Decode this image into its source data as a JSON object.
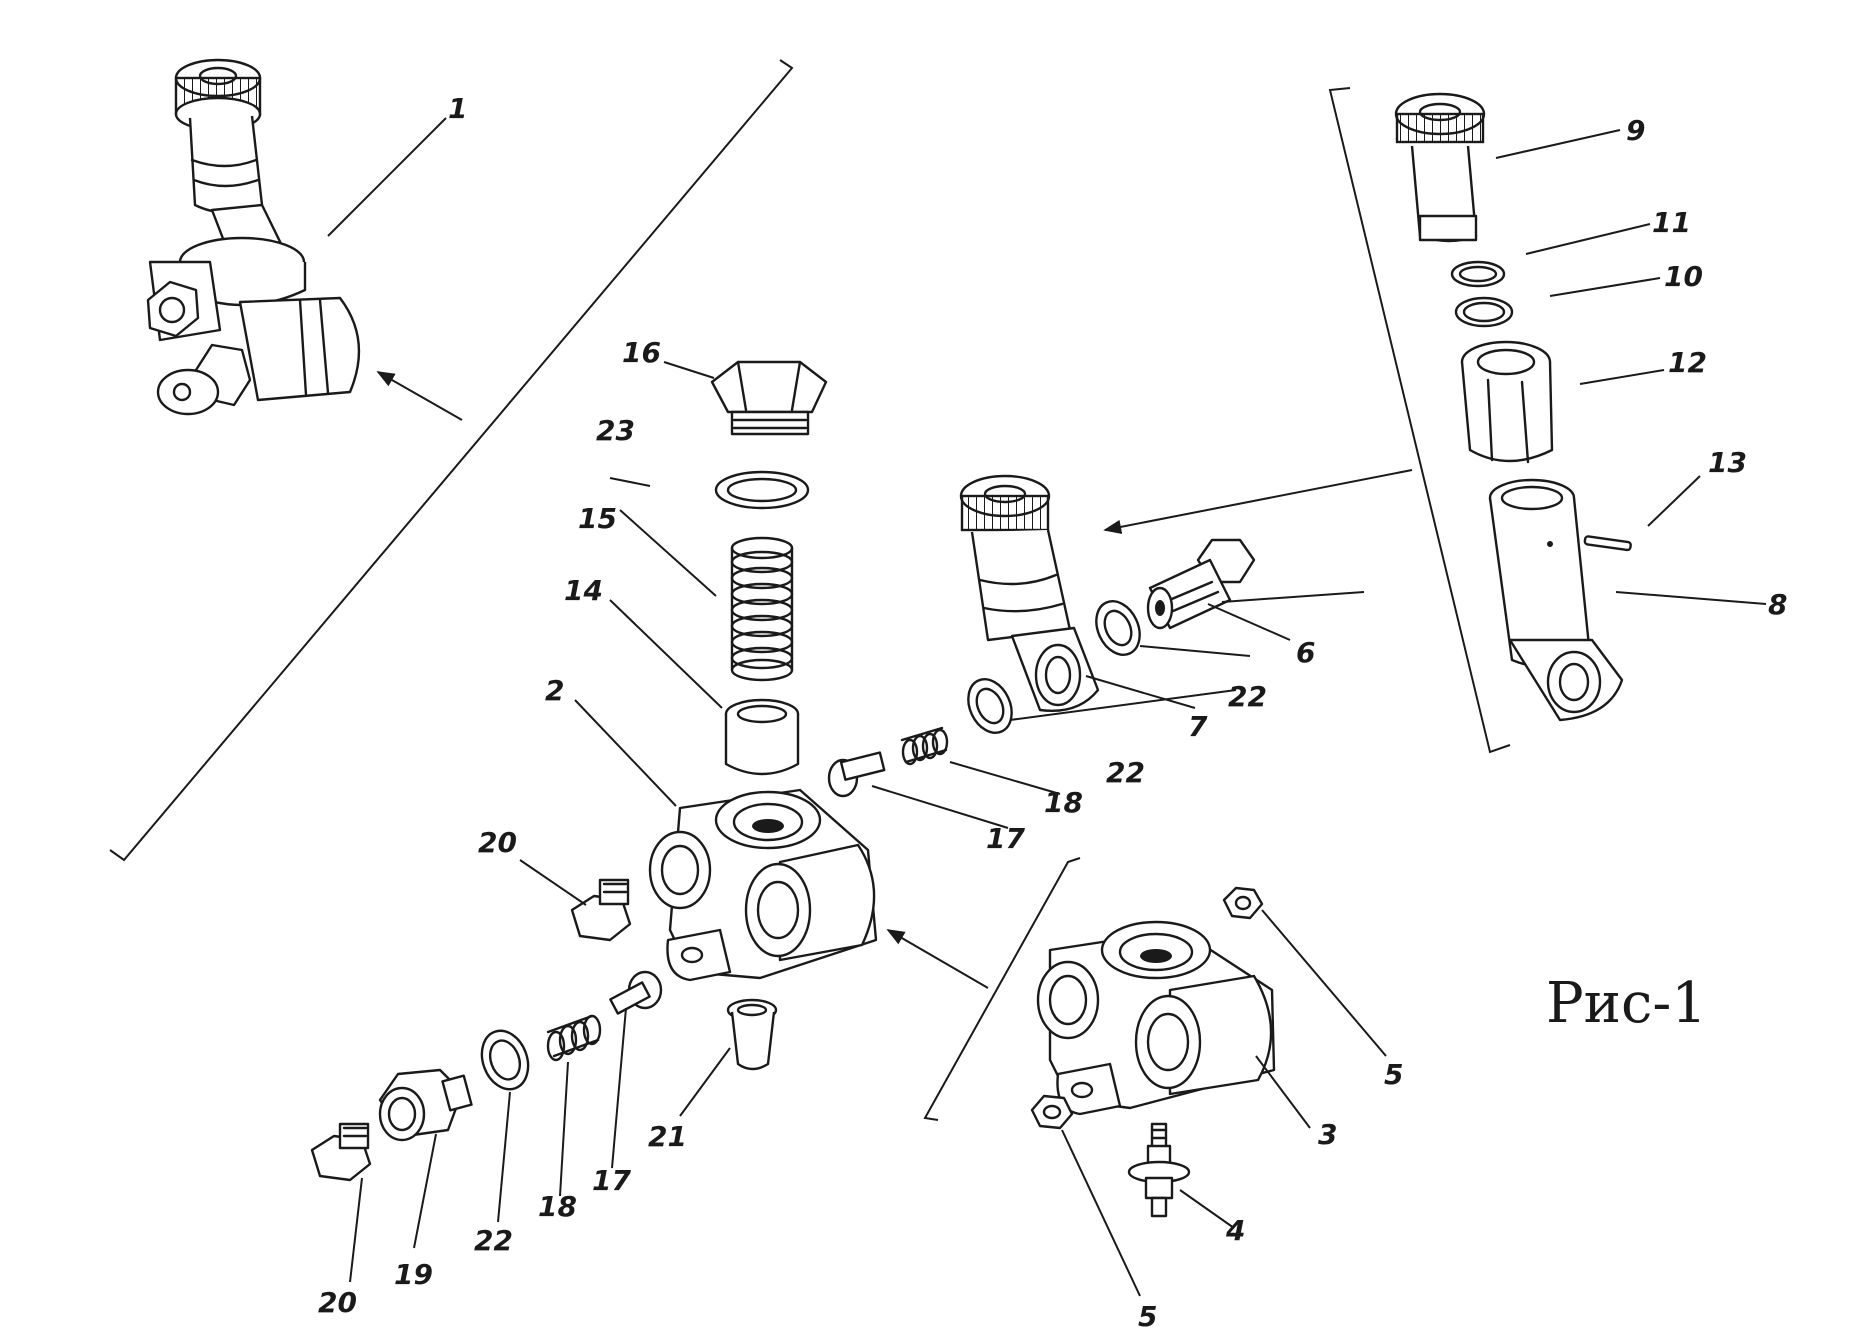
{
  "figure_label": "Рис-1",
  "callouts": {
    "c1": "1",
    "c2": "2",
    "c3": "3",
    "c4": "4",
    "c5a": "5",
    "c5b": "5",
    "c6": "6",
    "c7": "7",
    "c8": "8",
    "c9": "9",
    "c10": "10",
    "c11": "11",
    "c12": "12",
    "c13": "13",
    "c14": "14",
    "c15": "15",
    "c16": "16",
    "c17a": "17",
    "c17b": "17",
    "c18a": "18",
    "c18b": "18",
    "c19": "19",
    "c20a": "20",
    "c20b": "20",
    "c21": "21",
    "c22a": "22",
    "c22b": "22",
    "c22c": "22",
    "c23": "23"
  }
}
